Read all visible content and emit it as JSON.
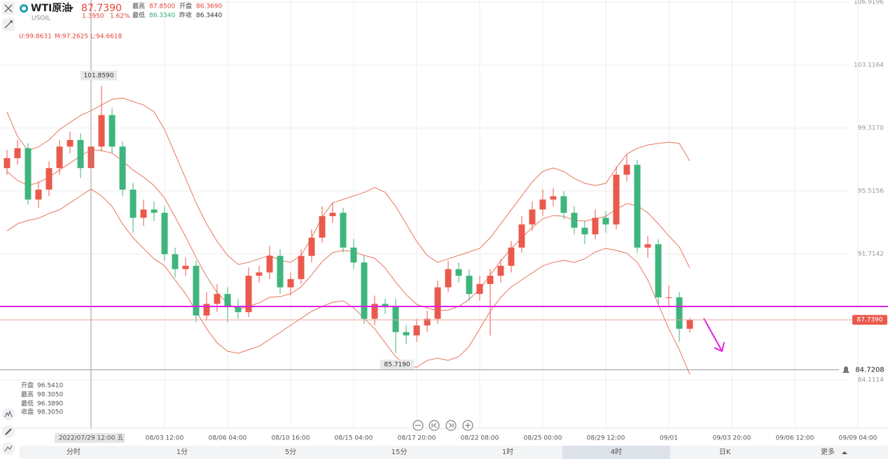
{
  "header": {
    "symbol": "WTI原油",
    "price": "87.7390",
    "change": "1.3950",
    "change_pct": "1.62%",
    "code": "USOIL",
    "stats": [
      {
        "label": "最高",
        "value": "87.8500"
      },
      {
        "label": "开盘",
        "value": "86.3690"
      },
      {
        "label": "最低",
        "value": "86.3340"
      },
      {
        "label": "昨收",
        "value": "86.3440"
      }
    ]
  },
  "indicator": [
    "U:99.8631",
    "M:97.2625",
    "L:94.6618"
  ],
  "ohlc_panel": [
    {
      "label": "开盘",
      "value": "96.5410"
    },
    {
      "label": "最高",
      "value": "98.3050"
    },
    {
      "label": "最低",
      "value": "96.3890"
    },
    {
      "label": "收盘",
      "value": "98.3050"
    }
  ],
  "tabs": [
    "分时",
    "1分",
    "5分",
    "15分",
    "1时",
    "4时",
    "日K",
    "更多"
  ],
  "chart_data": {
    "type": "candlestick",
    "up_color": "#ea5a4c",
    "down_color": "#3db57c",
    "categories": [
      null,
      null,
      null,
      null,
      null,
      null,
      null,
      null,
      "2022/07/29 12:00 五",
      null,
      null,
      null,
      null,
      null,
      null,
      "08/03 12:00",
      null,
      null,
      null,
      null,
      null,
      "08/06 04:00",
      null,
      null,
      null,
      null,
      null,
      "08/10 16:00",
      null,
      null,
      null,
      null,
      null,
      "08/15 04:00",
      null,
      null,
      null,
      null,
      null,
      "08/17 20:00",
      null,
      null,
      null,
      null,
      null,
      "08/22 08:00",
      null,
      null,
      null,
      null,
      null,
      "08/25 00:00",
      null,
      null,
      null,
      null,
      null,
      "08/29 12:00",
      null,
      null,
      null,
      null,
      null,
      "09/01",
      null,
      null,
      null,
      null,
      null,
      "09/03 20:00",
      null,
      null,
      null,
      null,
      null,
      "09/06 12:00",
      null,
      null,
      null,
      null,
      null,
      "09/09 04:00"
    ],
    "open": [
      96.9,
      97.5,
      98.1,
      95.0,
      95.6,
      96.9,
      98.2,
      98.6,
      96.9,
      98.2,
      100.1,
      98.2,
      95.6,
      93.9,
      94.4,
      94.2,
      91.7,
      90.8,
      91.0,
      88.0,
      88.7,
      89.3,
      88.5,
      88.2,
      90.4,
      90.6,
      91.6,
      89.7,
      90.2,
      91.6,
      92.7,
      94.0,
      94.2,
      92.1,
      91.2,
      87.8,
      88.7,
      88.5,
      87.0,
      86.8,
      87.4,
      87.8,
      89.7,
      90.8,
      90.4,
      89.3,
      89.9,
      90.4,
      91.0,
      92.1,
      93.5,
      94.4,
      95.0,
      95.2,
      94.2,
      93.3,
      92.9,
      93.9,
      93.5,
      96.5,
      97.1,
      92.1,
      92.3,
      89.1,
      89.1,
      87.2,
      null,
      null,
      null,
      null,
      null,
      null,
      null,
      null,
      null,
      null,
      null,
      null,
      null,
      null,
      null,
      null
    ],
    "high": [
      98.0,
      98.6,
      98.4,
      96.1,
      97.3,
      98.6,
      99.1,
      99.0,
      98.7,
      101.859,
      100.5,
      98.5,
      96.0,
      95.0,
      94.9,
      94.6,
      92.1,
      91.5,
      91.3,
      89.4,
      89.9,
      89.7,
      89.0,
      90.9,
      91.0,
      92.2,
      92.0,
      90.6,
      92.0,
      93.2,
      94.6,
      94.8,
      94.5,
      92.6,
      91.6,
      89.2,
      89.0,
      89.0,
      87.4,
      87.8,
      88.3,
      90.1,
      91.3,
      91.2,
      90.8,
      90.4,
      90.8,
      91.4,
      92.5,
      94.0,
      94.9,
      95.6,
      95.7,
      95.5,
      94.6,
      93.7,
      94.4,
      94.3,
      97.0,
      97.7,
      97.4,
      92.8,
      92.6,
      89.8,
      89.4,
      87.85,
      null,
      null,
      null,
      null,
      null,
      null,
      null,
      null,
      null,
      null,
      null,
      null,
      null,
      null,
      null,
      null
    ],
    "low": [
      96.5,
      97.1,
      94.7,
      94.5,
      95.2,
      96.5,
      97.8,
      96.3,
      96.5,
      97.9,
      97.8,
      95.2,
      93.0,
      93.4,
      93.7,
      91.3,
      90.3,
      90.4,
      87.6,
      87.7,
      88.2,
      87.6,
      87.8,
      87.9,
      90.0,
      90.2,
      89.3,
      89.2,
      89.9,
      91.2,
      92.4,
      93.6,
      91.8,
      90.8,
      87.5,
      87.4,
      88.1,
      85.719,
      86.3,
      86.4,
      87.0,
      87.5,
      89.4,
      90.0,
      88.9,
      88.9,
      86.8,
      90.0,
      90.6,
      91.8,
      93.1,
      94.0,
      94.6,
      93.8,
      92.9,
      92.3,
      92.6,
      93.0,
      93.2,
      96.1,
      91.8,
      91.5,
      88.7,
      88.6,
      86.4,
      86.95,
      null,
      null,
      null,
      null,
      null,
      null,
      null,
      null,
      null,
      null,
      null,
      null,
      null,
      null,
      null,
      null
    ],
    "close": [
      97.5,
      98.1,
      95.0,
      95.6,
      96.9,
      98.2,
      98.6,
      96.9,
      98.2,
      100.1,
      98.2,
      95.6,
      93.9,
      94.4,
      94.2,
      91.7,
      90.8,
      91.0,
      88.0,
      88.7,
      89.3,
      88.5,
      88.2,
      90.4,
      90.6,
      91.6,
      89.7,
      90.2,
      91.6,
      92.7,
      94.0,
      94.2,
      92.1,
      91.2,
      87.8,
      88.7,
      88.5,
      87.0,
      86.8,
      87.4,
      87.8,
      89.7,
      90.8,
      90.4,
      89.3,
      89.9,
      90.4,
      91.0,
      92.1,
      93.5,
      94.4,
      95.0,
      95.2,
      94.2,
      93.3,
      92.9,
      93.9,
      93.5,
      96.5,
      97.1,
      92.1,
      92.3,
      89.1,
      89.1,
      87.2,
      87.739,
      null,
      null,
      null,
      null,
      null,
      null,
      null,
      null,
      null,
      null,
      null,
      null,
      null,
      null,
      null,
      null
    ],
    "overlays": [
      {
        "color": "#e8765e",
        "values": [
          100.29,
          98.81,
          97.96,
          98.18,
          98.6,
          99.23,
          99.66,
          100.08,
          100.37,
          100.71,
          101.05,
          101.13,
          100.92,
          100.71,
          100.29,
          99.23,
          97.75,
          96.28,
          94.8,
          93.53,
          92.47,
          91.63,
          91.08,
          91.21,
          91.42,
          91.63,
          91.33,
          91.21,
          91.63,
          92.69,
          93.95,
          94.8,
          95.01,
          95.22,
          95.43,
          95.73,
          95.43,
          94.59,
          93.53,
          92.47,
          91.63,
          91.21,
          91.42,
          91.63,
          91.84,
          92.05,
          92.69,
          93.53,
          94.38,
          95.22,
          96.06,
          96.7,
          96.91,
          96.7,
          96.28,
          95.98,
          95.85,
          95.98,
          96.91,
          97.75,
          98.09,
          98.3,
          98.39,
          98.47,
          98.39,
          97.33,
          null,
          null,
          null,
          null,
          null,
          null,
          null,
          null,
          null,
          null,
          null,
          null,
          null,
          null,
          null,
          null
        ]
      },
      {
        "color": "#e8765e",
        "values": [
          96.7,
          96.15,
          95.85,
          96.02,
          96.36,
          96.78,
          97.2,
          97.63,
          98.01,
          97.96,
          97.8,
          97.33,
          96.78,
          96.36,
          95.85,
          95.09,
          93.95,
          92.77,
          91.5,
          90.36,
          89.39,
          88.71,
          88.38,
          88.55,
          88.76,
          89.1,
          89.14,
          89.31,
          89.73,
          90.45,
          91.25,
          91.8,
          91.93,
          91.84,
          91.63,
          91.46,
          90.87,
          90.02,
          89.26,
          88.67,
          88.46,
          88.29,
          88.33,
          88.55,
          88.97,
          89.6,
          90.45,
          91.29,
          92.05,
          92.69,
          93.32,
          93.83,
          94.04,
          93.99,
          93.74,
          93.7,
          93.83,
          93.99,
          94.42,
          94.75,
          94.63,
          94.21,
          93.53,
          92.81,
          92.14,
          90.87,
          null,
          null,
          null,
          null,
          null,
          null,
          null,
          null,
          null,
          null,
          null,
          null,
          null,
          null,
          null,
          null
        ]
      },
      {
        "color": "#e8765e",
        "values": [
          93.11,
          93.53,
          93.74,
          93.87,
          94.16,
          94.38,
          94.8,
          95.22,
          95.64,
          95.22,
          94.59,
          93.53,
          92.69,
          92.05,
          91.42,
          91.0,
          90.15,
          89.31,
          88.25,
          87.2,
          86.35,
          85.84,
          85.72,
          85.93,
          86.14,
          86.56,
          86.98,
          87.41,
          87.83,
          88.25,
          88.55,
          88.8,
          88.89,
          88.46,
          87.83,
          87.2,
          86.35,
          85.51,
          85.0,
          84.87,
          85.29,
          85.42,
          85.29,
          85.51,
          86.14,
          87.2,
          88.25,
          89.1,
          89.73,
          90.15,
          90.57,
          91.0,
          91.21,
          91.33,
          91.21,
          91.42,
          91.84,
          92.05,
          91.93,
          91.76,
          91.21,
          90.15,
          88.67,
          87.2,
          85.93,
          84.45,
          null,
          null,
          null,
          null,
          null,
          null,
          null,
          null,
          null,
          null,
          null,
          null,
          null,
          null,
          null,
          null
        ]
      }
    ],
    "ylim": [
      81.49,
      107.05
    ],
    "yticks": [
      106.9196,
      103.1164,
      {
        "value": 99.317,
        "label": "99.3170"
      },
      95.5156,
      91.7142,
      84.1114
    ],
    "grid": true,
    "last_price": {
      "value": 87.739,
      "label": "87.7390"
    },
    "crosshair_price": {
      "value": 84.7208,
      "label": "84.7208"
    },
    "high_label": "101.8590",
    "low_label": "85.7190"
  }
}
